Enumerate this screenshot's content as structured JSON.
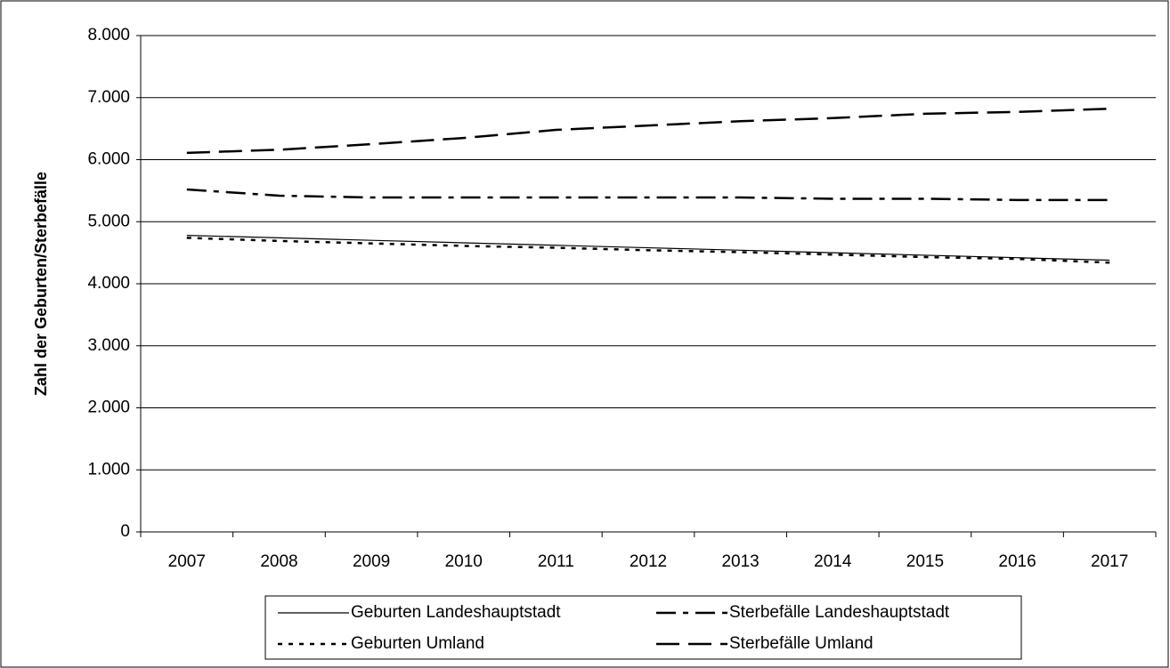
{
  "chart_data": {
    "type": "line",
    "y_label": "Zahl der Geburten/Sterbefälle",
    "categories": [
      "2007",
      "2008",
      "2009",
      "2010",
      "2011",
      "2012",
      "2013",
      "2014",
      "2015",
      "2016",
      "2017"
    ],
    "series": [
      {
        "name": "Geburten Landeshauptstadt",
        "color": "#000000",
        "dash": "solid",
        "values": [
          4780,
          4740,
          4700,
          4660,
          4620,
          4580,
          4540,
          4500,
          4460,
          4420,
          4380
        ]
      },
      {
        "name": "Sterbefälle Landeshauptstadt",
        "color": "#000000",
        "dash": "dashdot",
        "values": [
          5520,
          5420,
          5390,
          5390,
          5390,
          5390,
          5390,
          5370,
          5370,
          5350,
          5350
        ]
      },
      {
        "name": "Geburten Umland",
        "color": "#000000",
        "dash": "dotted",
        "values": [
          4740,
          4690,
          4650,
          4610,
          4580,
          4540,
          4510,
          4470,
          4430,
          4400,
          4340
        ]
      },
      {
        "name": "Sterbefälle Umland",
        "color": "#000000",
        "dash": "dashed",
        "values": [
          6110,
          6160,
          6250,
          6350,
          6480,
          6550,
          6620,
          6670,
          6740,
          6770,
          6820
        ]
      }
    ],
    "ylim": [
      0,
      8000
    ],
    "yticks": [
      0,
      {
        "value": 1000,
        "label": "1.000"
      },
      {
        "value": 2000,
        "label": "2.000"
      },
      {
        "value": 3000,
        "label": "3.000"
      },
      {
        "value": 4000,
        "label": "4.000"
      },
      {
        "value": 5000,
        "label": "5.000"
      },
      {
        "value": 6000,
        "label": "6.000"
      },
      {
        "value": 7000,
        "label": "7.000"
      },
      {
        "value": 8000,
        "label": "8.000"
      }
    ],
    "grid": true,
    "legend": "bottom"
  }
}
